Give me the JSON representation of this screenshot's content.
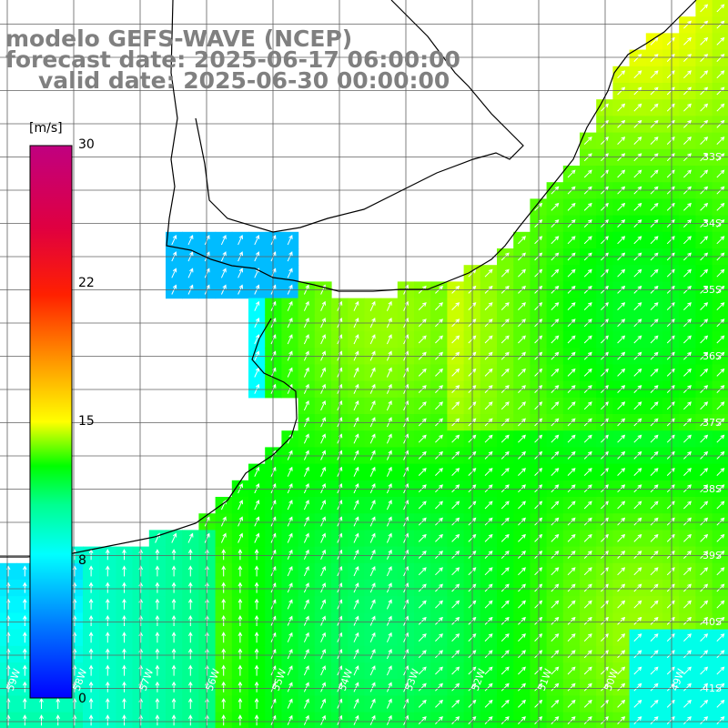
{
  "header": {
    "model": "modelo GEFS-WAVE (NCEP)",
    "forecast_date": "forecast date: 2025-06-17 06:00:00",
    "valid_date": "valid date: 2025-06-30 00:00:00"
  },
  "colorbar": {
    "unit": "[m/s]",
    "ticks": [
      "30",
      "22",
      "15",
      "8",
      "0"
    ],
    "colors": [
      "#0000ff",
      "#0078ff",
      "#00ffff",
      "#00ff00",
      "#ffff00",
      "#ffa000",
      "#ff2000",
      "#c00080"
    ]
  },
  "map": {
    "land_color": "#ffffff",
    "coast_color": "#000000",
    "grid_color": "#606060",
    "arrow_color": "#ffffff",
    "lat_labels": [
      "33S",
      "34S",
      "35S",
      "36S",
      "37S",
      "38S",
      "39S",
      "40S",
      "41S"
    ],
    "lon_labels": [
      "59W",
      "58W",
      "57W",
      "56W",
      "55W",
      "54W",
      "53W",
      "52W",
      "51W",
      "50W",
      "49W"
    ]
  }
}
